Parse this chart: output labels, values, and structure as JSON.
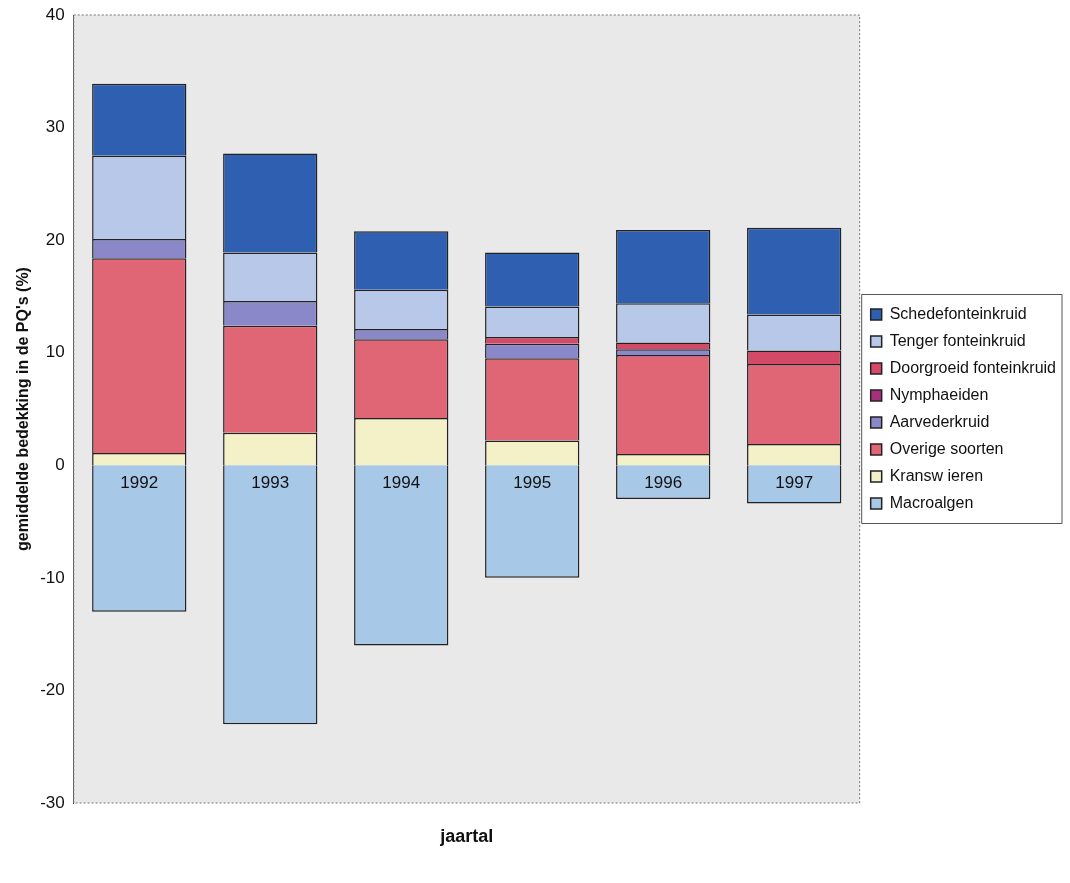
{
  "chart_data": {
    "type": "bar",
    "stacked": true,
    "xlabel": "jaartal",
    "ylabel": "gemiddelde bedekking in de PQ's (%)",
    "categories": [
      "1992",
      "1993",
      "1994",
      "1995",
      "1996",
      "1997"
    ],
    "series": [
      {
        "name": "Macroalgen",
        "color": "#a8c8e8",
        "values": [
          -13,
          -23,
          -16,
          -10,
          -3,
          -3.4
        ]
      },
      {
        "name": "Kransw ieren",
        "color": "#f4f0c8",
        "values": [
          1.1,
          2.9,
          4.2,
          2.2,
          1,
          1.9
        ]
      },
      {
        "name": "Overige soorten",
        "color": "#e06676",
        "values": [
          17.3,
          9.5,
          7,
          7.3,
          8.8,
          7.1
        ]
      },
      {
        "name": "Aarvederkruid",
        "color": "#8a88c8",
        "values": [
          1.7,
          2.2,
          0.9,
          1.3,
          0.5,
          0
        ]
      },
      {
        "name": "Nymphaeiden",
        "color": "#a8307a",
        "values": [
          0,
          0,
          0,
          0,
          0,
          0
        ]
      },
      {
        "name": "Doorgroeid fonteinkruid",
        "color": "#d44868",
        "values": [
          0,
          0,
          0,
          0.6,
          0.6,
          1.2
        ]
      },
      {
        "name": "Tenger fonteinkruid",
        "color": "#b8c8e8",
        "values": [
          7.4,
          4.3,
          3.5,
          2.7,
          3.5,
          3.2
        ]
      },
      {
        "name": "Schedefonteinkruid",
        "color": "#2e5fb0",
        "values": [
          6.4,
          8.8,
          5.2,
          4.8,
          6.5,
          7.7
        ]
      }
    ],
    "ylim": [
      -30,
      40
    ],
    "yticks": [
      -30,
      -20,
      -10,
      0,
      10,
      20,
      30,
      40
    ],
    "grid": false,
    "legend": "right"
  }
}
